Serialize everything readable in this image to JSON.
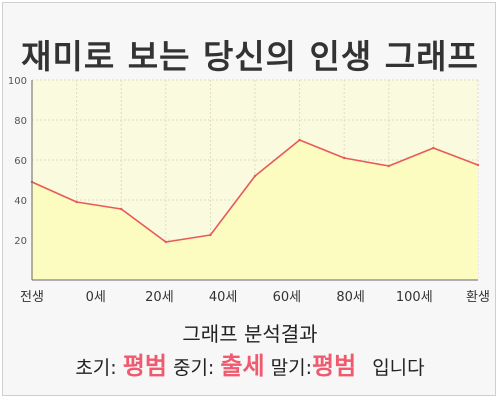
{
  "title": "재미로 보는 당신의 인생 그래프",
  "chart_data": {
    "type": "area",
    "title": "재미로 보는 당신의 인생 그래프",
    "x_labels": [
      "전생",
      "0세",
      "20세",
      "40세",
      "60세",
      "80세",
      "100세",
      "환생"
    ],
    "y_ticks": [
      20,
      40,
      60,
      80,
      100
    ],
    "ylim": [
      0,
      100
    ],
    "values": [
      49,
      39,
      35.5,
      19,
      22.5,
      52,
      70,
      61,
      57,
      66,
      57.5
    ],
    "grid": true,
    "colors": {
      "line": "#e85a5a",
      "fill": "#fdfcc0",
      "grid": "#e0dcc4"
    }
  },
  "caption": "그래프 분석결과",
  "result": {
    "early_label": "초기:",
    "early_value": "평범",
    "mid_label": "중기:",
    "mid_value": "출세",
    "late_label": "말기:",
    "late_value": "평범",
    "suffix": "입니다"
  }
}
